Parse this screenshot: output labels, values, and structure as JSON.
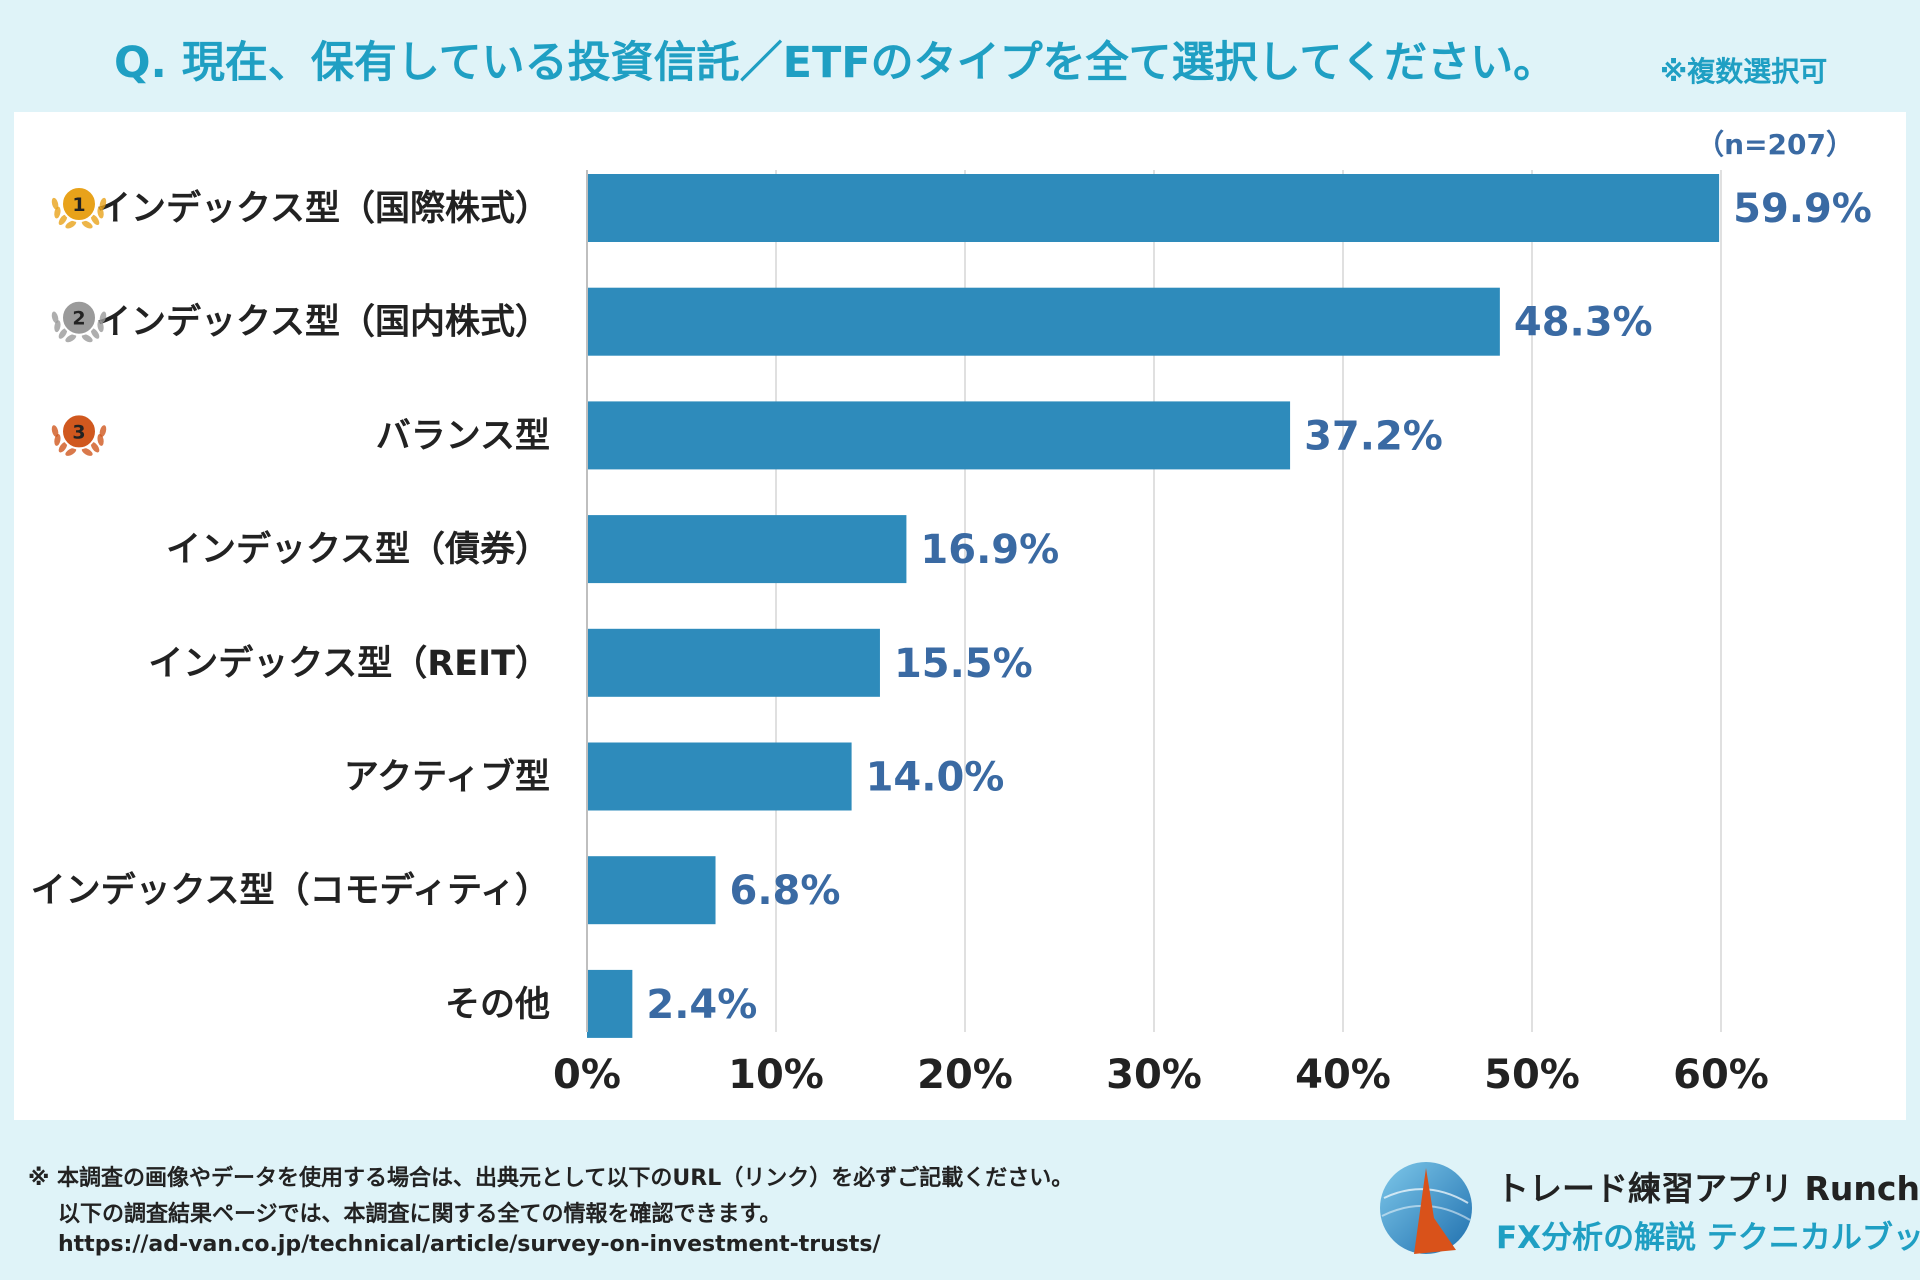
{
  "header": {
    "title": "Q. 現在、保有している投資信託／ETFのタイプを全て選択してください。",
    "note": "※複数選択可"
  },
  "chart_data": {
    "type": "bar",
    "orientation": "horizontal",
    "sample_size_label": "（n=207）",
    "categories": [
      "インデックス型（国際株式）",
      "インデックス型（国内株式）",
      "バランス型",
      "インデックス型（債券）",
      "インデックス型（REIT）",
      "アクティブ型",
      "インデックス型（コモディティ）",
      "その他"
    ],
    "values": [
      59.9,
      48.3,
      37.2,
      16.9,
      15.5,
      14.0,
      6.8,
      2.4
    ],
    "value_labels": [
      "59.9%",
      "48.3%",
      "37.2%",
      "16.9%",
      "15.5%",
      "14.0%",
      "6.8%",
      "2.4%"
    ],
    "rank_badges": [
      "1",
      "2",
      "3"
    ],
    "xlim": [
      0,
      60
    ],
    "xticks": [
      0,
      10,
      20,
      30,
      40,
      50,
      60
    ],
    "xtick_labels": [
      "0%",
      "10%",
      "20%",
      "30%",
      "40%",
      "50%",
      "60%"
    ],
    "grid": true,
    "colors": {
      "bar": "#2e8bbb",
      "value_text": "#3a6aa3",
      "grid": "#d6d6d6",
      "gold": "#e8a21a",
      "silver": "#9a9a9a",
      "bronze": "#d0581e"
    }
  },
  "footer": {
    "line1": "※ 本調査の画像やデータを使用する場合は、出典元として以下のURL（リンク）を必ずご記載ください。",
    "line2": "以下の調査結果ページでは、本調査に関する全ての情報を確認できます。",
    "line3": "https://ad-van.co.jp/technical/article/survey-on-investment-trusts/",
    "brand_line1": "トレード練習アプリ  Runcha",
    "brand_line2": "FX分析の解説  テクニカルブック",
    "colors": {
      "accent": "#1f9fc3",
      "logo_dark": "#2a7fb8",
      "logo_flame": "#d9521a"
    }
  }
}
